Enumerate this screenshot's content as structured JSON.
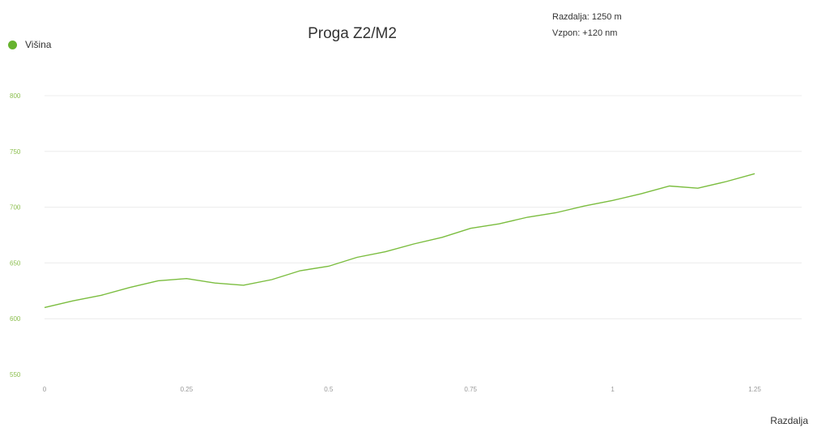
{
  "info": {
    "distance": "Razdalja: 1250 m",
    "climb": "Vzpon: +120 nm"
  },
  "colors": {
    "series": "#7bbd3f",
    "legend_dot": "#66b32e",
    "y_tick": "#8cbf4f",
    "grid": "#ececec"
  },
  "chart_data": {
    "type": "line",
    "title": "Proga Z2/M2",
    "xlabel": "Razdalja",
    "ylabel": "",
    "legend_position": "top-left",
    "grid": true,
    "xlim": [
      0,
      1.25
    ],
    "ylim": [
      550,
      800
    ],
    "x_tick_values": [
      0,
      0.25,
      0.5,
      0.75,
      1,
      1.25
    ],
    "x_tick_labels": [
      "0",
      "0.25",
      "0.5",
      "0.75",
      "1",
      "1.25"
    ],
    "y_tick_values": [
      550,
      600,
      650,
      700,
      750,
      800
    ],
    "y_tick_labels": [
      "550",
      "600",
      "650",
      "700",
      "750",
      "800"
    ],
    "series": [
      {
        "name": "Višina",
        "x": [
          0,
          0.05,
          0.1,
          0.15,
          0.2,
          0.25,
          0.3,
          0.35,
          0.4,
          0.45,
          0.5,
          0.55,
          0.6,
          0.65,
          0.7,
          0.75,
          0.8,
          0.85,
          0.9,
          0.95,
          1.0,
          1.05,
          1.1,
          1.15,
          1.2,
          1.25
        ],
        "values": [
          610,
          616,
          621,
          628,
          634,
          636,
          632,
          630,
          635,
          643,
          647,
          655,
          660,
          667,
          673,
          681,
          685,
          691,
          695,
          701,
          706,
          712,
          719,
          717,
          723,
          730
        ]
      }
    ]
  }
}
